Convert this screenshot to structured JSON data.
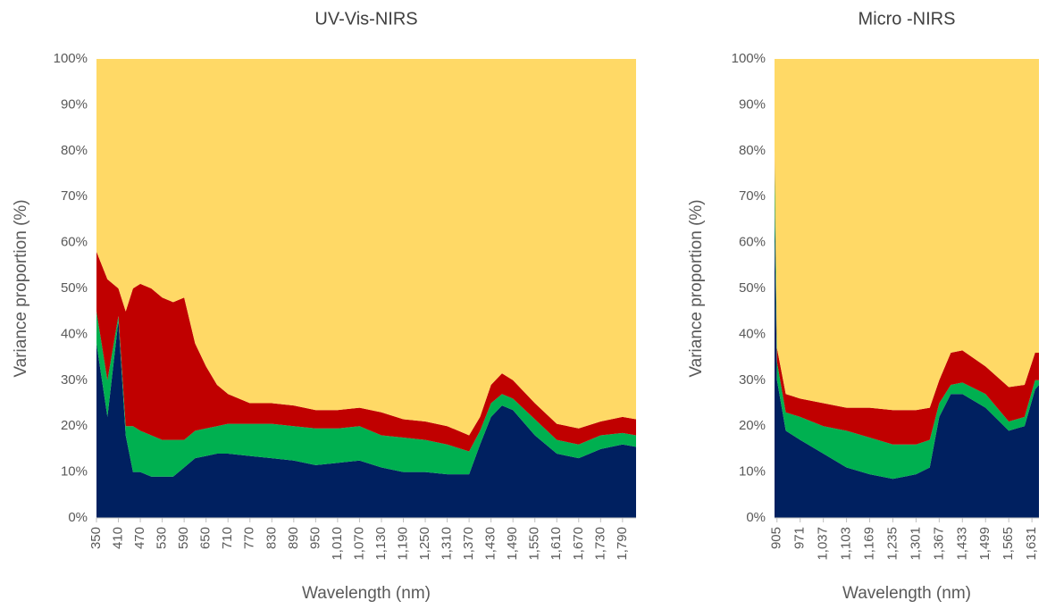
{
  "chart_data": [
    {
      "type": "stacked-area",
      "title": "UV-Vis-NIRS",
      "y_label": "Variance proportion (%)",
      "x_label": "Wavelength (nm)",
      "x": [
        350,
        380,
        410,
        430,
        450,
        470,
        500,
        530,
        560,
        590,
        620,
        650,
        680,
        710,
        770,
        830,
        890,
        950,
        1010,
        1070,
        1130,
        1190,
        1250,
        1310,
        1370,
        1400,
        1430,
        1460,
        1490,
        1550,
        1610,
        1670,
        1730,
        1790,
        1827
      ],
      "series": [
        {
          "color": "#002060",
          "values": [
            38,
            22,
            43,
            18,
            10,
            10,
            9,
            9,
            9,
            11,
            13,
            13.5,
            14,
            14,
            13.5,
            13,
            12.5,
            11.5,
            12,
            12.5,
            11,
            10,
            10,
            9.5,
            9.5,
            16,
            22,
            24.5,
            23.5,
            18,
            14,
            13,
            15,
            16,
            15.5
          ]
        },
        {
          "color": "#00b050",
          "values": [
            7,
            8,
            1,
            2,
            10,
            9,
            9,
            8,
            8,
            6,
            6,
            6,
            6,
            6.5,
            7,
            7.5,
            7.5,
            8,
            7.5,
            7.5,
            7,
            7.5,
            7,
            6.5,
            5,
            3,
            3,
            2.5,
            2.5,
            3.5,
            3,
            3,
            3,
            2.5,
            2.5
          ]
        },
        {
          "color": "#c00000",
          "values": [
            13,
            22,
            6,
            25,
            30,
            32,
            32,
            31,
            30,
            31,
            19,
            13.5,
            9,
            6.5,
            4.5,
            4.5,
            4.5,
            4,
            4,
            4,
            5,
            4,
            4,
            4,
            3.5,
            3,
            4,
            4.5,
            4,
            3.5,
            3.5,
            3.5,
            3,
            3.5,
            3.5
          ]
        },
        {
          "color": "#ffd966",
          "values": [
            42,
            48,
            50,
            55,
            50,
            49,
            50,
            52,
            53,
            52,
            62,
            67,
            71,
            73,
            75,
            75,
            75.5,
            76.5,
            76.5,
            76,
            77,
            78.5,
            79,
            80,
            82,
            78,
            71,
            68.5,
            70,
            75,
            79.5,
            80.5,
            79,
            78,
            78.5
          ]
        }
      ],
      "xlim": [
        350,
        1827
      ],
      "xticks": [
        350,
        410,
        470,
        530,
        590,
        650,
        710,
        770,
        830,
        890,
        950,
        {
          "value": 1010,
          "label": "1,010"
        },
        {
          "value": 1070,
          "label": "1,070"
        },
        {
          "value": 1130,
          "label": "1,130"
        },
        {
          "value": 1190,
          "label": "1,190"
        },
        {
          "value": 1250,
          "label": "1,250"
        },
        {
          "value": 1310,
          "label": "1,310"
        },
        {
          "value": 1370,
          "label": "1,370"
        },
        {
          "value": 1430,
          "label": "1,430"
        },
        {
          "value": 1490,
          "label": "1,490"
        },
        {
          "value": 1550,
          "label": "1,550"
        },
        {
          "value": 1610,
          "label": "1,610"
        },
        {
          "value": 1670,
          "label": "1,670"
        },
        {
          "value": 1730,
          "label": "1,730"
        },
        {
          "value": 1790,
          "label": "1,790"
        }
      ],
      "ylim": [
        0,
        100
      ],
      "yticks": [
        {
          "value": 0,
          "label": "0%"
        },
        {
          "value": 10,
          "label": "10%"
        },
        {
          "value": 20,
          "label": "20%"
        },
        {
          "value": 30,
          "label": "30%"
        },
        {
          "value": 40,
          "label": "40%"
        },
        {
          "value": 50,
          "label": "50%"
        },
        {
          "value": 60,
          "label": "60%"
        },
        {
          "value": 70,
          "label": "70%"
        },
        {
          "value": 80,
          "label": "80%"
        },
        {
          "value": 90,
          "label": "90%"
        },
        {
          "value": 100,
          "label": "100%"
        }
      ]
    },
    {
      "type": "stacked-area",
      "title": "Micro -NIRS",
      "y_label": "Variance proportion (%)",
      "x_label": "Wavelength (nm)",
      "x": [
        898,
        905,
        930,
        971,
        1037,
        1103,
        1169,
        1235,
        1301,
        1340,
        1367,
        1400,
        1433,
        1499,
        1565,
        1610,
        1640,
        1651
      ],
      "series": [
        {
          "color": "#002060",
          "values": [
            67,
            30,
            19,
            17,
            14,
            11,
            9.5,
            8.5,
            9.5,
            11,
            22,
            27,
            27,
            24,
            19,
            20,
            28,
            29
          ]
        },
        {
          "color": "#00b050",
          "values": [
            11,
            4,
            4,
            5,
            6,
            8,
            8,
            7.5,
            6.5,
            6,
            3,
            2,
            2.5,
            3,
            2,
            2,
            2,
            1
          ]
        },
        {
          "color": "#c00000",
          "values": [
            2,
            3,
            4,
            4,
            5,
            5,
            6.5,
            7.5,
            7.5,
            7,
            5,
            7,
            7,
            6,
            7.5,
            7,
            6,
            6
          ]
        },
        {
          "color": "#ffd966",
          "values": [
            20,
            63,
            73,
            74,
            75,
            76,
            76,
            76.5,
            76.5,
            76,
            70,
            64,
            63.5,
            67,
            71.5,
            71,
            64,
            64
          ]
        }
      ],
      "xlim": [
        898,
        1651
      ],
      "xticks": [
        905,
        971,
        {
          "value": 1037,
          "label": "1,037"
        },
        {
          "value": 1103,
          "label": "1,103"
        },
        {
          "value": 1169,
          "label": "1,169"
        },
        {
          "value": 1235,
          "label": "1,235"
        },
        {
          "value": 1301,
          "label": "1,301"
        },
        {
          "value": 1367,
          "label": "1,367"
        },
        {
          "value": 1433,
          "label": "1,433"
        },
        {
          "value": 1499,
          "label": "1,499"
        },
        {
          "value": 1565,
          "label": "1,565"
        },
        {
          "value": 1631,
          "label": "1,631"
        }
      ],
      "ylim": [
        0,
        100
      ],
      "yticks": [
        {
          "value": 0,
          "label": "0%"
        },
        {
          "value": 10,
          "label": "10%"
        },
        {
          "value": 20,
          "label": "20%"
        },
        {
          "value": 30,
          "label": "30%"
        },
        {
          "value": 40,
          "label": "40%"
        },
        {
          "value": 50,
          "label": "50%"
        },
        {
          "value": 60,
          "label": "60%"
        },
        {
          "value": 70,
          "label": "70%"
        },
        {
          "value": 80,
          "label": "80%"
        },
        {
          "value": 90,
          "label": "90%"
        },
        {
          "value": 100,
          "label": "100%"
        }
      ]
    }
  ]
}
